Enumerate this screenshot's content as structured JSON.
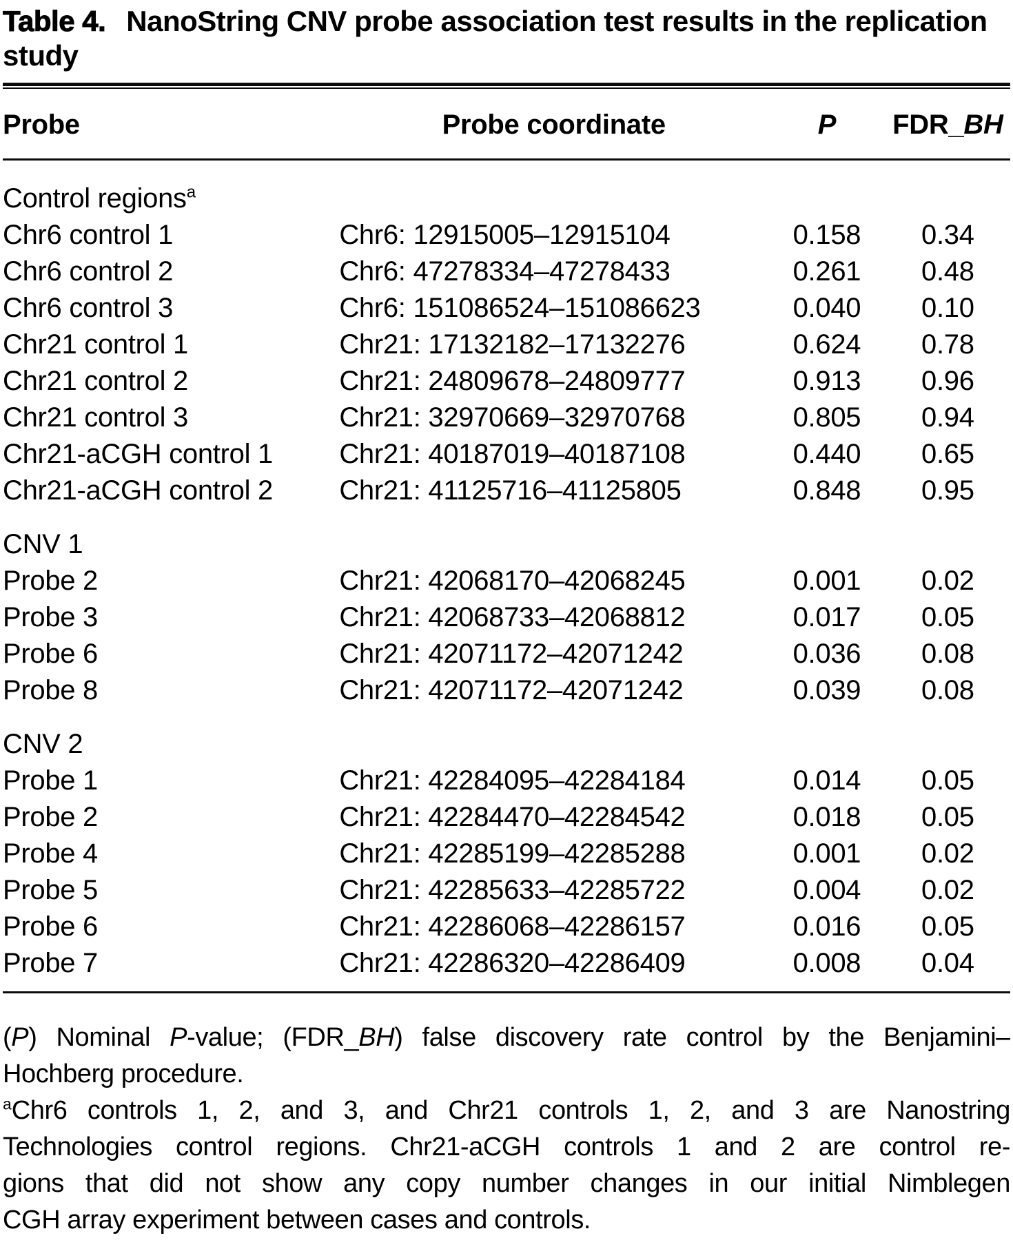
{
  "title": {
    "label": "Table 4.",
    "text": "NanoString CNV probe association test results in the replication study"
  },
  "table": {
    "headers": {
      "probe": "Probe",
      "coordinate": "Probe coordinate",
      "p_runs": [
        {
          "t": "P",
          "i": true
        }
      ],
      "fdr_runs": [
        {
          "t": "FDR_"
        },
        {
          "t": "BH",
          "i": true
        }
      ]
    },
    "groups": [
      {
        "label_runs": [
          {
            "t": "Control regions"
          },
          {
            "t": "a",
            "sup": true
          }
        ],
        "rows": [
          {
            "probe": "Chr6 control 1",
            "coord": "Chr6: 12915005–12915104",
            "p": "0.158",
            "fdr": "0.34"
          },
          {
            "probe": "Chr6 control 2",
            "coord": "Chr6: 47278334–47278433",
            "p": "0.261",
            "fdr": "0.48"
          },
          {
            "probe": "Chr6 control 3",
            "coord": "Chr6: 151086524–151086623",
            "p": "0.040",
            "fdr": "0.10"
          },
          {
            "probe": "Chr21 control 1",
            "coord": "Chr21: 17132182–17132276",
            "p": "0.624",
            "fdr": "0.78"
          },
          {
            "probe": "Chr21 control 2",
            "coord": "Chr21: 24809678–24809777",
            "p": "0.913",
            "fdr": "0.96"
          },
          {
            "probe": "Chr21 control 3",
            "coord": "Chr21: 32970669–32970768",
            "p": "0.805",
            "fdr": "0.94"
          },
          {
            "probe": "Chr21-aCGH control 1",
            "coord": "Chr21: 40187019–40187108",
            "p": "0.440",
            "fdr": "0.65"
          },
          {
            "probe": "Chr21-aCGH control 2",
            "coord": "Chr21: 41125716–41125805",
            "p": "0.848",
            "fdr": "0.95"
          }
        ]
      },
      {
        "label_runs": [
          {
            "t": "CNV 1"
          }
        ],
        "rows": [
          {
            "probe": "Probe 2",
            "coord": "Chr21: 42068170–42068245",
            "p": "0.001",
            "fdr": "0.02"
          },
          {
            "probe": "Probe 3",
            "coord": "Chr21: 42068733–42068812",
            "p": "0.017",
            "fdr": "0.05"
          },
          {
            "probe": "Probe 6",
            "coord": "Chr21: 42071172–42071242",
            "p": "0.036",
            "fdr": "0.08"
          },
          {
            "probe": "Probe 8",
            "coord": "Chr21: 42071172–42071242",
            "p": "0.039",
            "fdr": "0.08"
          }
        ]
      },
      {
        "label_runs": [
          {
            "t": "CNV 2"
          }
        ],
        "rows": [
          {
            "probe": "Probe 1",
            "coord": "Chr21: 42284095–42284184",
            "p": "0.014",
            "fdr": "0.05"
          },
          {
            "probe": "Probe 2",
            "coord": "Chr21: 42284470–42284542",
            "p": "0.018",
            "fdr": "0.05"
          },
          {
            "probe": "Probe 4",
            "coord": "Chr21: 42285199–42285288",
            "p": "0.001",
            "fdr": "0.02"
          },
          {
            "probe": "Probe 5",
            "coord": "Chr21: 42285633–42285722",
            "p": "0.004",
            "fdr": "0.02"
          },
          {
            "probe": "Probe 6",
            "coord": "Chr21: 42286068–42286157",
            "p": "0.016",
            "fdr": "0.05"
          },
          {
            "probe": "Probe 7",
            "coord": "Chr21: 42286320–42286409",
            "p": "0.008",
            "fdr": "0.04"
          }
        ]
      }
    ]
  },
  "footnotes": {
    "p1_lines": [
      [
        {
          "t": "("
        },
        {
          "t": "P",
          "i": true
        },
        {
          "t": ") Nominal "
        },
        {
          "t": "P",
          "i": true
        },
        {
          "t": "-value; (FDR_"
        },
        {
          "t": "BH",
          "i": true
        },
        {
          "t": ") false discovery rate control by the Benjamini–"
        }
      ],
      [
        {
          "t": "Hochberg procedure."
        }
      ]
    ],
    "p2_lines": [
      [
        {
          "t": "a",
          "sup": true
        },
        {
          "t": "Chr6 controls 1, 2, and 3, and Chr21 controls 1, 2, and 3 are Nanostring"
        }
      ],
      [
        {
          "t": "Technologies control regions. Chr21-aCGH controls 1 and 2 are control re-"
        }
      ],
      [
        {
          "t": "gions that did not show any copy number changes in our initial Nimblegen"
        }
      ],
      [
        {
          "t": "CGH array experiment between cases and controls."
        }
      ]
    ]
  }
}
